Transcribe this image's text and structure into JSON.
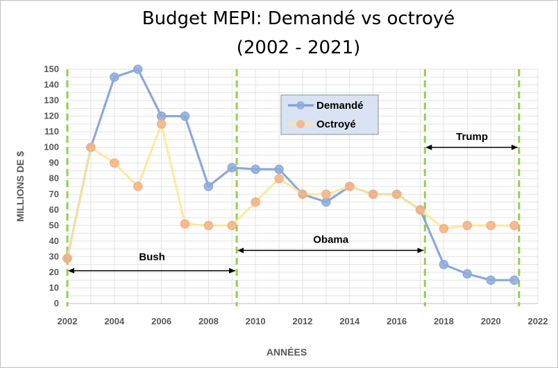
{
  "chart_data": {
    "type": "line",
    "title_line1": "Budget MEPI: Demandé vs octroyé",
    "title_line2": "(2002 - 2021)",
    "xlabel": "ANNÉES",
    "ylabel": "MILLIONS DE $",
    "xlim": [
      2002,
      2022
    ],
    "ylim": [
      0,
      150
    ],
    "x_ticks": [
      2002,
      2004,
      2006,
      2008,
      2010,
      2012,
      2014,
      2016,
      2018,
      2020,
      2022
    ],
    "y_ticks": [
      0,
      10,
      20,
      30,
      40,
      50,
      60,
      70,
      80,
      90,
      100,
      110,
      120,
      130,
      140,
      150
    ],
    "grid": true,
    "legend_position": "top-center",
    "series": [
      {
        "name": "Demandé",
        "color": "#7f9fd6",
        "marker_color": "#8eaadb",
        "x": [
          2002,
          2003,
          2004,
          2005,
          2006,
          2007,
          2008,
          2009,
          2010,
          2011,
          2012,
          2013,
          2014,
          2015,
          2016,
          2017,
          2018,
          2019,
          2020,
          2021
        ],
        "values": [
          29,
          100,
          145,
          150,
          120,
          120,
          75,
          87,
          86,
          86,
          70,
          65,
          75,
          70,
          70,
          60,
          25,
          19,
          15,
          15
        ]
      },
      {
        "name": "Octroyé",
        "color": "#ffe699",
        "marker_color": "#f4b183",
        "x": [
          2002,
          2003,
          2004,
          2005,
          2006,
          2007,
          2008,
          2009,
          2010,
          2011,
          2012,
          2013,
          2014,
          2015,
          2016,
          2017,
          2018,
          2019,
          2020,
          2021
        ],
        "values": [
          29,
          100,
          90,
          75,
          115,
          51,
          50,
          50,
          65,
          80,
          70,
          70,
          75,
          70,
          70,
          60,
          48,
          50,
          50,
          50
        ]
      }
    ],
    "periods": [
      {
        "label": "Bush",
        "start": 2002,
        "end": 2009.2,
        "arrow_y": 21,
        "label_y": 30
      },
      {
        "label": "Obama",
        "start": 2009.2,
        "end": 2017.2,
        "arrow_y": 34,
        "label_y": 41
      },
      {
        "label": "Trump",
        "start": 2017.2,
        "end": 2021.2,
        "arrow_y": 100,
        "label_y": 107
      }
    ],
    "period_dividers": [
      2002,
      2009.2,
      2017.2,
      2021.2
    ],
    "divider_color": "#92d050"
  }
}
